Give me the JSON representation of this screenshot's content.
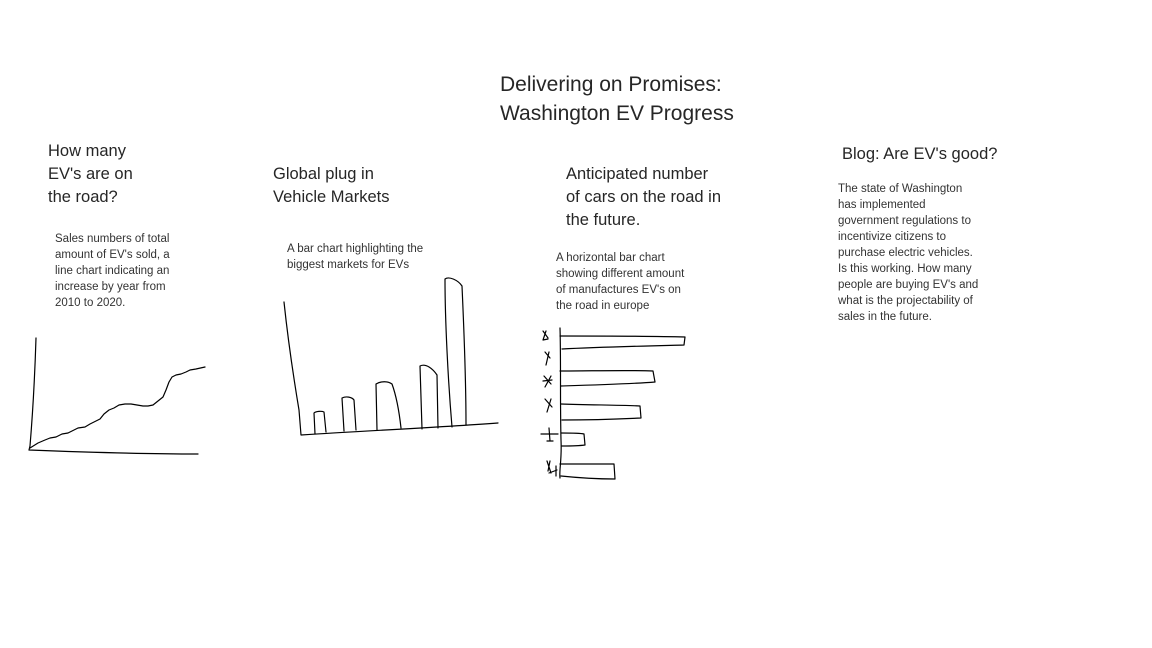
{
  "title": "Delivering on Promises:\nWashington EV Progress",
  "panels": [
    {
      "heading": "How many\nEV's are on\nthe road?",
      "description": "Sales numbers of total\namount of EV's sold, a\nline chart indicating an\nincrease by year from\n2010 to 2020."
    },
    {
      "heading": "Global plug in\nVehicle Markets",
      "description": "A bar chart highlighting the\nbiggest markets for EVs"
    },
    {
      "heading": "Anticipated number\nof cars on the road in\nthe future.",
      "description": "A horizontal bar chart\nshowing different amount\nof manufactures EV's on\nthe road in europe"
    },
    {
      "heading": "Blog: Are EV's good?",
      "description": "The state of Washington\nhas implemented\ngovernment regulations to\nincentivize citizens to\npurchase electric vehicles.\nIs this working. How many\npeople are buying EV's and\nwhat is the projectability of\nsales in the future."
    }
  ],
  "sketches": {
    "line_chart_icon": "hand-drawn-line-chart-sketch",
    "vertical_bar_icon": "hand-drawn-bar-chart-sketch",
    "horizontal_bar_icon": "hand-drawn-horizontal-bar-chart-sketch"
  }
}
